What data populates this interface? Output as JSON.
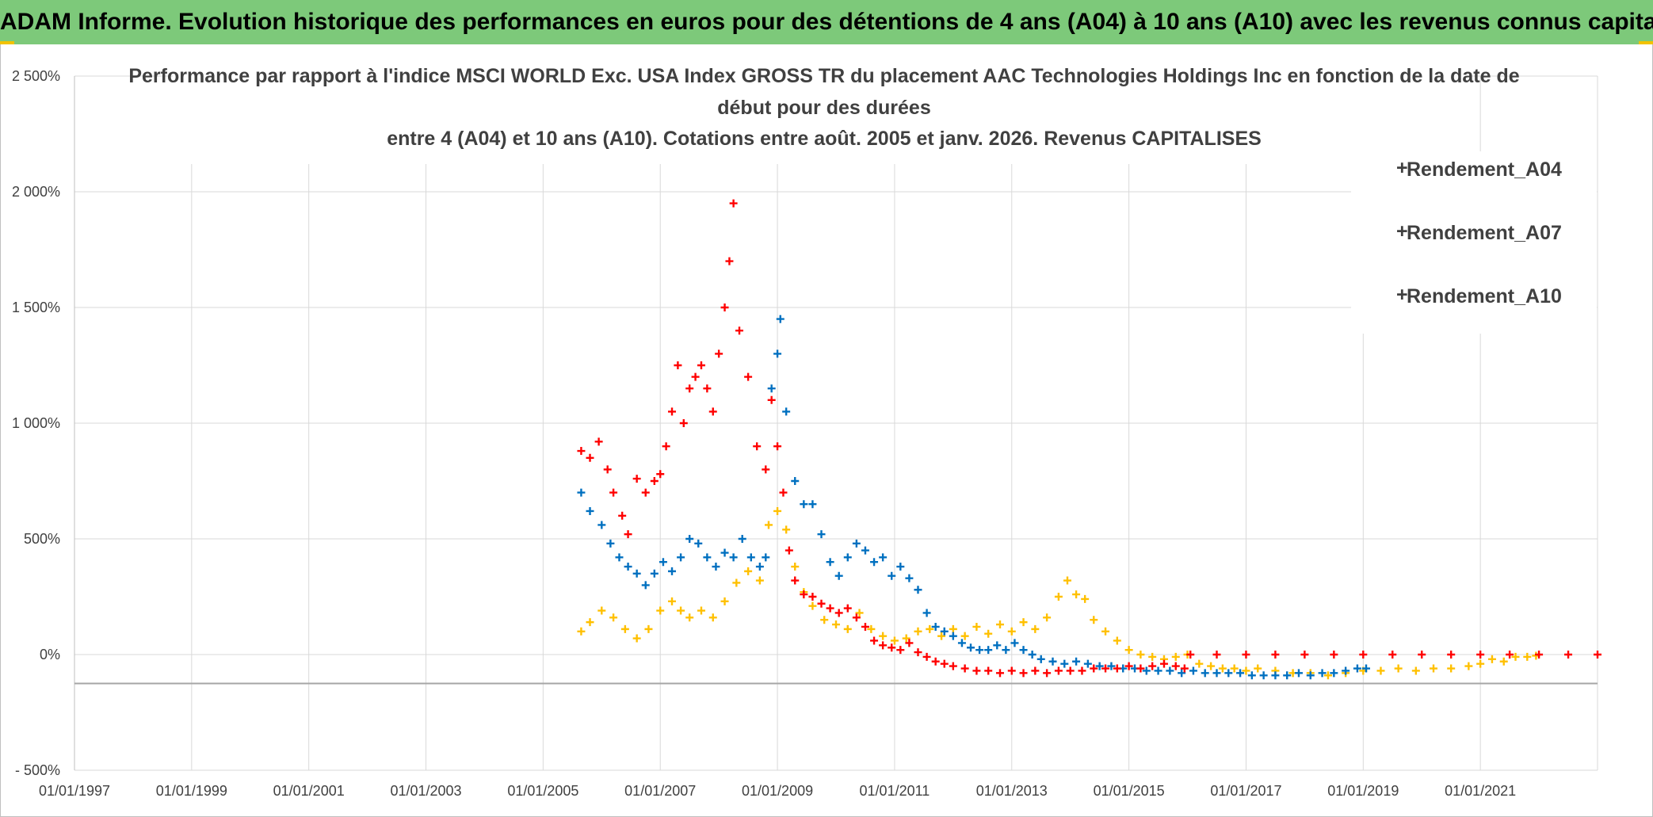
{
  "banner": "ADAM Informe. Evolution historique des performances en euros pour des détentions de 4 ans (A04) à 10 ans (A10) avec les revenus connus capitalisés",
  "colors": {
    "A04": "#ffc000",
    "A07": "#0070c0",
    "A10": "#ff0000",
    "banner": "#7dc97a"
  },
  "chart_data": {
    "type": "scatter",
    "title_lines": [
      "Performance par rapport à l'indice MSCI WORLD Exc. USA Index GROSS TR  du placement AAC Technologies Holdings Inc en fonction de la date de",
      "début pour des durées",
      "entre 4 (A04) et 10 ans (A10). Cotations entre août. 2005 et janv. 2026. Revenus CAPITALISES"
    ],
    "xlim": [
      1997.0,
      2023.0
    ],
    "ylim": [
      -500,
      2500
    ],
    "x_ticks": [
      1997,
      1999,
      2001,
      2003,
      2005,
      2007,
      2009,
      2011,
      2013,
      2015,
      2017,
      2019,
      2021
    ],
    "x_tick_labels": [
      "01/01/1997",
      "01/01/1999",
      "01/01/2001",
      "01/01/2003",
      "01/01/2005",
      "01/01/2007",
      "01/01/2009",
      "01/01/2011",
      "01/01/2013",
      "01/01/2015",
      "01/01/2017",
      "01/01/2019",
      "01/01/2021"
    ],
    "y_ticks": [
      -500,
      0,
      500,
      1000,
      1500,
      2000,
      2500
    ],
    "y_tick_labels": [
      "- 500%",
      "0%",
      "500%",
      "1 000%",
      "1 500%",
      "2 000%",
      "2 500%"
    ],
    "ref_line_y": -125,
    "series": [
      {
        "name": "Rendement_A04",
        "key": "A04",
        "points": [
          [
            2005.65,
            100
          ],
          [
            2005.8,
            140
          ],
          [
            2006.0,
            190
          ],
          [
            2006.2,
            160
          ],
          [
            2006.4,
            110
          ],
          [
            2006.6,
            70
          ],
          [
            2006.8,
            110
          ],
          [
            2007.0,
            190
          ],
          [
            2007.2,
            230
          ],
          [
            2007.35,
            190
          ],
          [
            2007.5,
            160
          ],
          [
            2007.7,
            190
          ],
          [
            2007.9,
            160
          ],
          [
            2008.1,
            230
          ],
          [
            2008.3,
            310
          ],
          [
            2008.5,
            360
          ],
          [
            2008.7,
            320
          ],
          [
            2008.85,
            560
          ],
          [
            2009.0,
            620
          ],
          [
            2009.15,
            540
          ],
          [
            2009.3,
            380
          ],
          [
            2009.45,
            270
          ],
          [
            2009.6,
            210
          ],
          [
            2009.8,
            150
          ],
          [
            2010.0,
            130
          ],
          [
            2010.2,
            110
          ],
          [
            2010.4,
            180
          ],
          [
            2010.6,
            110
          ],
          [
            2010.8,
            80
          ],
          [
            2011.0,
            60
          ],
          [
            2011.2,
            70
          ],
          [
            2011.4,
            100
          ],
          [
            2011.6,
            110
          ],
          [
            2011.8,
            80
          ],
          [
            2012.0,
            110
          ],
          [
            2012.2,
            80
          ],
          [
            2012.4,
            120
          ],
          [
            2012.6,
            90
          ],
          [
            2012.8,
            130
          ],
          [
            2013.0,
            100
          ],
          [
            2013.2,
            140
          ],
          [
            2013.4,
            110
          ],
          [
            2013.6,
            160
          ],
          [
            2013.8,
            250
          ],
          [
            2013.95,
            320
          ],
          [
            2014.1,
            260
          ],
          [
            2014.25,
            240
          ],
          [
            2014.4,
            150
          ],
          [
            2014.6,
            100
          ],
          [
            2014.8,
            60
          ],
          [
            2015.0,
            20
          ],
          [
            2015.2,
            0
          ],
          [
            2015.4,
            -10
          ],
          [
            2015.6,
            -20
          ],
          [
            2015.8,
            -10
          ],
          [
            2016.0,
            0
          ],
          [
            2016.2,
            -40
          ],
          [
            2016.4,
            -50
          ],
          [
            2016.6,
            -60
          ],
          [
            2016.8,
            -60
          ],
          [
            2017.0,
            -70
          ],
          [
            2017.2,
            -60
          ],
          [
            2017.5,
            -70
          ],
          [
            2017.8,
            -80
          ],
          [
            2018.1,
            -80
          ],
          [
            2018.4,
            -90
          ],
          [
            2018.7,
            -80
          ],
          [
            2019.0,
            -70
          ],
          [
            2019.3,
            -70
          ],
          [
            2019.6,
            -60
          ],
          [
            2019.9,
            -70
          ],
          [
            2020.2,
            -60
          ],
          [
            2020.5,
            -60
          ],
          [
            2020.8,
            -50
          ],
          [
            2021.0,
            -40
          ],
          [
            2021.2,
            -20
          ],
          [
            2021.4,
            -30
          ],
          [
            2021.6,
            -10
          ],
          [
            2021.8,
            -10
          ],
          [
            2021.95,
            -5
          ]
        ]
      },
      {
        "name": "Rendement_A07",
        "key": "A07",
        "points": [
          [
            2005.65,
            700
          ],
          [
            2005.8,
            620
          ],
          [
            2006.0,
            560
          ],
          [
            2006.15,
            480
          ],
          [
            2006.3,
            420
          ],
          [
            2006.45,
            380
          ],
          [
            2006.6,
            350
          ],
          [
            2006.75,
            300
          ],
          [
            2006.9,
            350
          ],
          [
            2007.05,
            400
          ],
          [
            2007.2,
            360
          ],
          [
            2007.35,
            420
          ],
          [
            2007.5,
            500
          ],
          [
            2007.65,
            480
          ],
          [
            2007.8,
            420
          ],
          [
            2007.95,
            380
          ],
          [
            2008.1,
            440
          ],
          [
            2008.25,
            420
          ],
          [
            2008.4,
            500
          ],
          [
            2008.55,
            420
          ],
          [
            2008.7,
            380
          ],
          [
            2008.8,
            420
          ],
          [
            2008.9,
            1150
          ],
          [
            2009.0,
            1300
          ],
          [
            2009.05,
            1450
          ],
          [
            2009.15,
            1050
          ],
          [
            2009.3,
            750
          ],
          [
            2009.45,
            650
          ],
          [
            2009.6,
            650
          ],
          [
            2009.75,
            520
          ],
          [
            2009.9,
            400
          ],
          [
            2010.05,
            340
          ],
          [
            2010.2,
            420
          ],
          [
            2010.35,
            480
          ],
          [
            2010.5,
            450
          ],
          [
            2010.65,
            400
          ],
          [
            2010.8,
            420
          ],
          [
            2010.95,
            340
          ],
          [
            2011.1,
            380
          ],
          [
            2011.25,
            330
          ],
          [
            2011.4,
            280
          ],
          [
            2011.55,
            180
          ],
          [
            2011.7,
            120
          ],
          [
            2011.85,
            100
          ],
          [
            2012.0,
            80
          ],
          [
            2012.15,
            50
          ],
          [
            2012.3,
            30
          ],
          [
            2012.45,
            20
          ],
          [
            2012.6,
            20
          ],
          [
            2012.75,
            40
          ],
          [
            2012.9,
            20
          ],
          [
            2013.05,
            50
          ],
          [
            2013.2,
            20
          ],
          [
            2013.35,
            0
          ],
          [
            2013.5,
            -20
          ],
          [
            2013.7,
            -30
          ],
          [
            2013.9,
            -40
          ],
          [
            2014.1,
            -30
          ],
          [
            2014.3,
            -40
          ],
          [
            2014.5,
            -50
          ],
          [
            2014.7,
            -50
          ],
          [
            2014.9,
            -60
          ],
          [
            2015.1,
            -60
          ],
          [
            2015.3,
            -70
          ],
          [
            2015.5,
            -70
          ],
          [
            2015.7,
            -70
          ],
          [
            2015.9,
            -80
          ],
          [
            2016.1,
            -70
          ],
          [
            2016.3,
            -80
          ],
          [
            2016.5,
            -80
          ],
          [
            2016.7,
            -80
          ],
          [
            2016.9,
            -80
          ],
          [
            2017.1,
            -90
          ],
          [
            2017.3,
            -90
          ],
          [
            2017.5,
            -90
          ],
          [
            2017.7,
            -90
          ],
          [
            2017.9,
            -80
          ],
          [
            2018.1,
            -90
          ],
          [
            2018.3,
            -80
          ],
          [
            2018.5,
            -80
          ],
          [
            2018.7,
            -70
          ],
          [
            2018.9,
            -60
          ],
          [
            2019.05,
            -60
          ]
        ]
      },
      {
        "name": "Rendement_A10",
        "key": "A10",
        "points": [
          [
            2005.65,
            880
          ],
          [
            2005.8,
            850
          ],
          [
            2005.95,
            920
          ],
          [
            2006.1,
            800
          ],
          [
            2006.2,
            700
          ],
          [
            2006.35,
            600
          ],
          [
            2006.45,
            520
          ],
          [
            2006.6,
            760
          ],
          [
            2006.75,
            700
          ],
          [
            2006.9,
            750
          ],
          [
            2007.0,
            780
          ],
          [
            2007.1,
            900
          ],
          [
            2007.2,
            1050
          ],
          [
            2007.3,
            1250
          ],
          [
            2007.4,
            1000
          ],
          [
            2007.5,
            1150
          ],
          [
            2007.6,
            1200
          ],
          [
            2007.7,
            1250
          ],
          [
            2007.8,
            1150
          ],
          [
            2007.9,
            1050
          ],
          [
            2008.0,
            1300
          ],
          [
            2008.1,
            1500
          ],
          [
            2008.18,
            1700
          ],
          [
            2008.25,
            1950
          ],
          [
            2008.35,
            1400
          ],
          [
            2008.5,
            1200
          ],
          [
            2008.65,
            900
          ],
          [
            2008.8,
            800
          ],
          [
            2008.9,
            1100
          ],
          [
            2009.0,
            900
          ],
          [
            2009.1,
            700
          ],
          [
            2009.2,
            450
          ],
          [
            2009.3,
            320
          ],
          [
            2009.45,
            260
          ],
          [
            2009.6,
            250
          ],
          [
            2009.75,
            220
          ],
          [
            2009.9,
            200
          ],
          [
            2010.05,
            180
          ],
          [
            2010.2,
            200
          ],
          [
            2010.35,
            160
          ],
          [
            2010.5,
            120
          ],
          [
            2010.65,
            60
          ],
          [
            2010.8,
            40
          ],
          [
            2010.95,
            30
          ],
          [
            2011.1,
            20
          ],
          [
            2011.25,
            50
          ],
          [
            2011.4,
            10
          ],
          [
            2011.55,
            -10
          ],
          [
            2011.7,
            -30
          ],
          [
            2011.85,
            -40
          ],
          [
            2012.0,
            -50
          ],
          [
            2012.2,
            -60
          ],
          [
            2012.4,
            -70
          ],
          [
            2012.6,
            -70
          ],
          [
            2012.8,
            -80
          ],
          [
            2013.0,
            -70
          ],
          [
            2013.2,
            -80
          ],
          [
            2013.4,
            -70
          ],
          [
            2013.6,
            -80
          ],
          [
            2013.8,
            -70
          ],
          [
            2014.0,
            -70
          ],
          [
            2014.2,
            -70
          ],
          [
            2014.4,
            -60
          ],
          [
            2014.6,
            -60
          ],
          [
            2014.8,
            -60
          ],
          [
            2015.0,
            -50
          ],
          [
            2015.2,
            -60
          ],
          [
            2015.4,
            -50
          ],
          [
            2015.6,
            -40
          ],
          [
            2015.8,
            -50
          ],
          [
            2015.95,
            -60
          ],
          [
            2016.05,
            0
          ],
          [
            2016.5,
            0
          ],
          [
            2017.0,
            0
          ],
          [
            2017.5,
            0
          ],
          [
            2018.0,
            0
          ],
          [
            2018.5,
            0
          ],
          [
            2019.0,
            0
          ],
          [
            2019.5,
            0
          ],
          [
            2020.0,
            0
          ],
          [
            2020.5,
            0
          ],
          [
            2021.0,
            0
          ],
          [
            2021.5,
            0
          ],
          [
            2022.0,
            0
          ],
          [
            2022.5,
            0
          ],
          [
            2023.0,
            0
          ]
        ]
      }
    ],
    "legend": [
      "Rendement_A04",
      "Rendement_A07",
      "Rendement_A10"
    ],
    "legend_position": "top-right"
  }
}
